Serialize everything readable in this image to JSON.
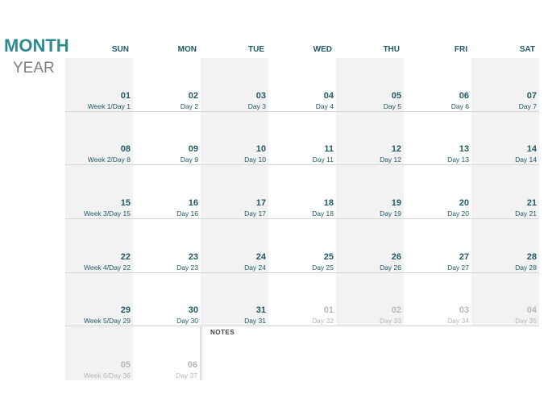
{
  "header": {
    "month": "MONTH",
    "year": "YEAR"
  },
  "days_of_week": [
    "SUN",
    "MON",
    "TUE",
    "WED",
    "THU",
    "FRI",
    "SAT"
  ],
  "weeks": [
    [
      {
        "num": "01",
        "label": "Week 1/Day 1"
      },
      {
        "num": "02",
        "label": "Day 2"
      },
      {
        "num": "03",
        "label": "Day 3"
      },
      {
        "num": "04",
        "label": "Day 4"
      },
      {
        "num": "05",
        "label": "Day 5"
      },
      {
        "num": "06",
        "label": "Day 6"
      },
      {
        "num": "07",
        "label": "Day 7"
      }
    ],
    [
      {
        "num": "08",
        "label": "Week 2/Day 8"
      },
      {
        "num": "09",
        "label": "Day 9"
      },
      {
        "num": "10",
        "label": "Day 10"
      },
      {
        "num": "11",
        "label": "Day 11"
      },
      {
        "num": "12",
        "label": "Day 12"
      },
      {
        "num": "13",
        "label": "Day 13"
      },
      {
        "num": "14",
        "label": "Day 14"
      }
    ],
    [
      {
        "num": "15",
        "label": "Week 3/Day 15"
      },
      {
        "num": "16",
        "label": "Day 16"
      },
      {
        "num": "17",
        "label": "Day 17"
      },
      {
        "num": "18",
        "label": "Day 18"
      },
      {
        "num": "19",
        "label": "Day 19"
      },
      {
        "num": "20",
        "label": "Day 20"
      },
      {
        "num": "21",
        "label": "Day 21"
      }
    ],
    [
      {
        "num": "22",
        "label": "Week 4/Day 22"
      },
      {
        "num": "23",
        "label": "Day 23"
      },
      {
        "num": "24",
        "label": "Day 24"
      },
      {
        "num": "25",
        "label": "Day 25"
      },
      {
        "num": "26",
        "label": "Day 26"
      },
      {
        "num": "27",
        "label": "Day 27"
      },
      {
        "num": "28",
        "label": "Day 28"
      }
    ],
    [
      {
        "num": "29",
        "label": "Week 5/Day 29"
      },
      {
        "num": "30",
        "label": "Day 30"
      },
      {
        "num": "31",
        "label": "Day 31"
      },
      {
        "num": "01",
        "label": "Day 32",
        "dim": true
      },
      {
        "num": "02",
        "label": "Day 33",
        "dim": true
      },
      {
        "num": "03",
        "label": "Day 34",
        "dim": true
      },
      {
        "num": "04",
        "label": "Day 35",
        "dim": true
      }
    ],
    [
      {
        "num": "05",
        "label": "Week 6/Day 36",
        "dim": true
      },
      {
        "num": "06",
        "label": "Day 37",
        "dim": true
      }
    ]
  ],
  "notes": {
    "label": "NOTES"
  },
  "colors": {
    "accent": "#2f8a8f",
    "text_dark": "#1f5a66",
    "dim": "#b7b7b7",
    "shade": "#f2f2f2"
  }
}
